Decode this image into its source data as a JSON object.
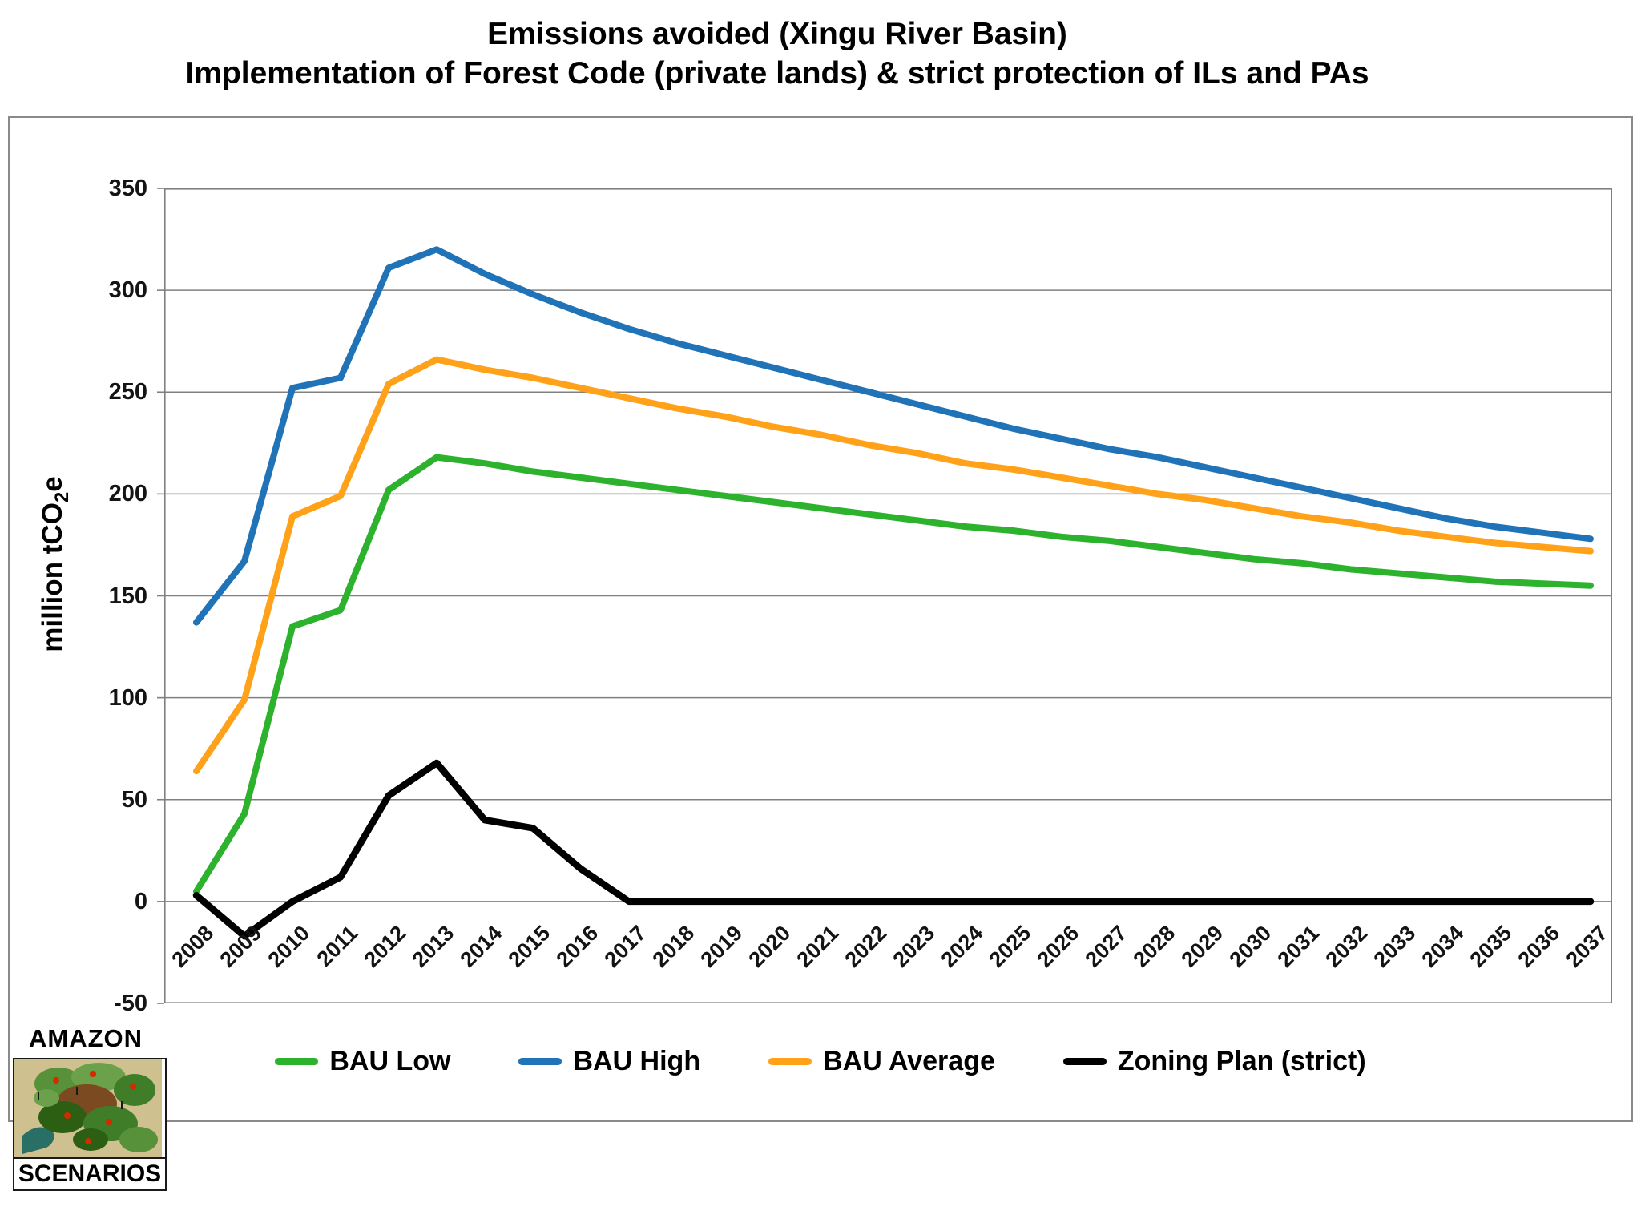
{
  "title": {
    "line1": "Emissions avoided (Xingu River Basin)",
    "line2": "Implementation of Forest Code (private lands) & strict protection of ILs and PAs"
  },
  "y_axis": {
    "title_prefix": "million tCO",
    "title_sub": "2",
    "title_suffix": "e",
    "ticks": [
      350,
      300,
      250,
      200,
      150,
      100,
      50,
      0,
      -50
    ]
  },
  "colors": {
    "bau_low": "#2db22d",
    "bau_high": "#2173b8",
    "bau_average": "#ffa21a",
    "zoning_plan": "#000000",
    "gridline": "#808080",
    "frame_border": "#8a8a8a"
  },
  "legend": [
    {
      "label": "BAU Low",
      "color": "#2db22d"
    },
    {
      "label": "BAU High",
      "color": "#2173b8"
    },
    {
      "label": "BAU Average",
      "color": "#ffa21a"
    },
    {
      "label": "Zoning Plan (strict)",
      "color": "#000000"
    }
  ],
  "logo": {
    "top_text": "AMAZON",
    "bottom_text": "SCENARIOS"
  },
  "chart_data": {
    "type": "line",
    "title": "Emissions avoided (Xingu River Basin) — Implementation of Forest Code (private lands) & strict protection of ILs and PAs",
    "xlabel": "",
    "ylabel": "million tCO2e",
    "ylim": [
      -50,
      350
    ],
    "ytick_step": 50,
    "grid": true,
    "legend_position": "bottom",
    "x": [
      2008,
      2009,
      2010,
      2011,
      2012,
      2013,
      2014,
      2015,
      2016,
      2017,
      2018,
      2019,
      2020,
      2021,
      2022,
      2023,
      2024,
      2025,
      2026,
      2027,
      2028,
      2029,
      2030,
      2031,
      2032,
      2033,
      2034,
      2035,
      2036,
      2037
    ],
    "series": [
      {
        "name": "BAU Low",
        "color": "#2db22d",
        "values": [
          5,
          43,
          135,
          143,
          202,
          218,
          215,
          211,
          208,
          205,
          202,
          199,
          196,
          193,
          190,
          187,
          184,
          182,
          179,
          177,
          174,
          171,
          168,
          166,
          163,
          161,
          159,
          157,
          156,
          155
        ]
      },
      {
        "name": "BAU High",
        "color": "#2173b8",
        "values": [
          137,
          167,
          252,
          257,
          311,
          320,
          308,
          298,
          289,
          281,
          274,
          268,
          262,
          256,
          250,
          244,
          238,
          232,
          227,
          222,
          218,
          213,
          208,
          203,
          198,
          193,
          188,
          184,
          181,
          178
        ]
      },
      {
        "name": "BAU Average",
        "color": "#ffa21a",
        "values": [
          64,
          99,
          189,
          199,
          254,
          266,
          261,
          257,
          252,
          247,
          242,
          238,
          233,
          229,
          224,
          220,
          215,
          212,
          208,
          204,
          200,
          197,
          193,
          189,
          186,
          182,
          179,
          176,
          174,
          172
        ]
      },
      {
        "name": "Zoning Plan (strict)",
        "color": "#000000",
        "values": [
          3,
          -17,
          0,
          12,
          52,
          68,
          40,
          36,
          16,
          0,
          0,
          0,
          0,
          0,
          0,
          0,
          0,
          0,
          0,
          0,
          0,
          0,
          0,
          0,
          0,
          0,
          0,
          0,
          0,
          0
        ]
      }
    ]
  }
}
